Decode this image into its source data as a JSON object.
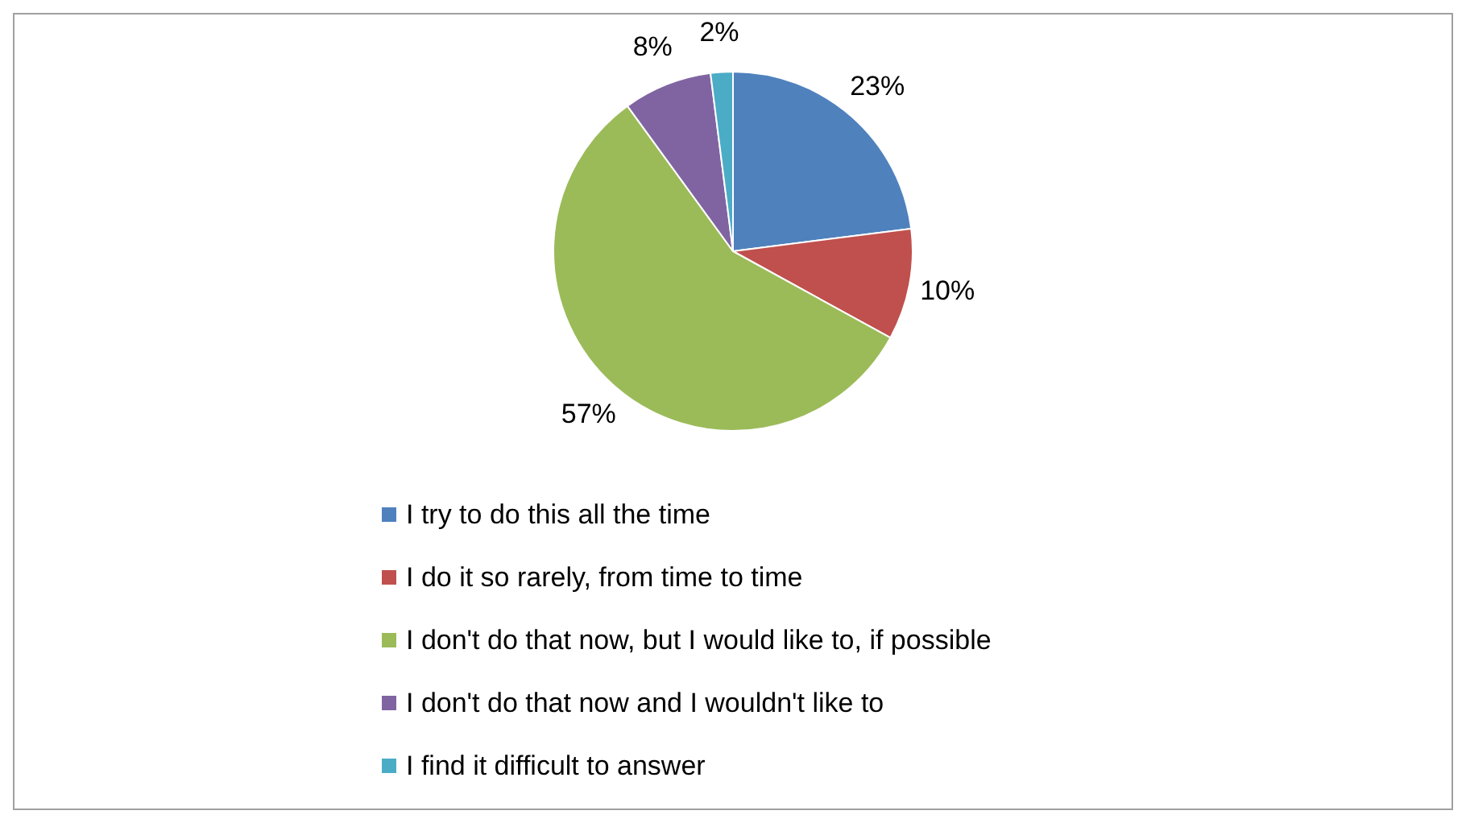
{
  "chart_data": {
    "type": "pie",
    "categories": [
      "I try to do this all the time",
      "I do it so rarely, from time to time",
      "I don't do that now, but I would like to, if possible",
      "I don't do that now and I wouldn't like to",
      "I find it difficult to answer"
    ],
    "values": [
      23,
      10,
      57,
      8,
      2
    ],
    "colors": [
      "#4f81bd",
      "#c0504d",
      "#9bbb59",
      "#8064a2",
      "#4bacc6"
    ],
    "value_labels": [
      "23%",
      "10%",
      "57%",
      "8%",
      "2%"
    ],
    "legend": "bottom"
  }
}
